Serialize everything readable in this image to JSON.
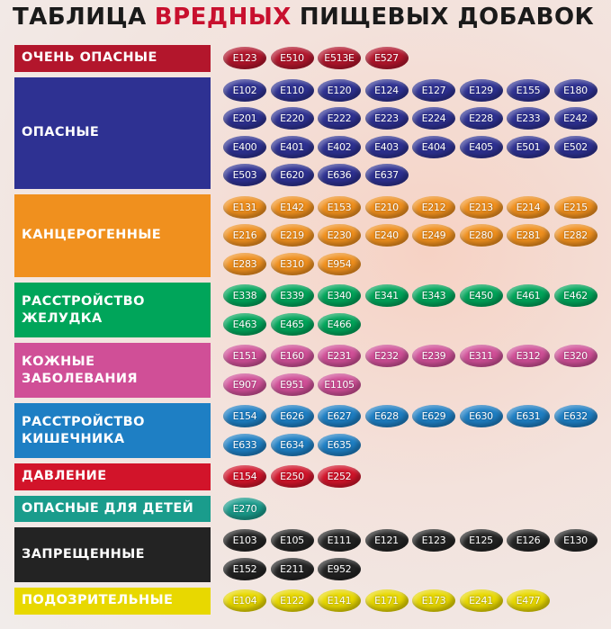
{
  "title": {
    "parts": [
      {
        "text": "ТАБЛИЦА",
        "color": "#1a1a1a"
      },
      {
        "text": "ВРЕДНЫХ",
        "color": "#c8102e"
      },
      {
        "text": "ПИЩЕВЫХ ДОБАВОК",
        "color": "#1a1a1a"
      }
    ]
  },
  "groups": [
    {
      "label": [
        "ОЧЕНЬ ОПАСНЫЕ"
      ],
      "color": "#b3162c",
      "codes": [
        "E123",
        "E510",
        "E513E",
        "E527"
      ]
    },
    {
      "label": [
        "ОПАСНЫЕ"
      ],
      "color": "#2e3192",
      "codes": [
        "E102",
        "E110",
        "E120",
        "E124",
        "E127",
        "E129",
        "E155",
        "E180",
        "E201",
        "E220",
        "E222",
        "E223",
        "E224",
        "E228",
        "E233",
        "E242",
        "E400",
        "E401",
        "E402",
        "E403",
        "E404",
        "E405",
        "E501",
        "E502",
        "E503",
        "E620",
        "E636",
        "E637"
      ]
    },
    {
      "label": [
        "КАНЦЕРОГЕННЫЕ"
      ],
      "color": "#f0901e",
      "codes": [
        "E131",
        "E142",
        "E153",
        "E210",
        "E212",
        "E213",
        "E214",
        "E215",
        "E216",
        "E219",
        "E230",
        "E240",
        "E249",
        "E280",
        "E281",
        "E282",
        "E283",
        "E310",
        "E954"
      ]
    },
    {
      "label": [
        "РАССТРОЙСТВО",
        "ЖЕЛУДКА"
      ],
      "color": "#00a55a",
      "codes": [
        "E338",
        "E339",
        "E340",
        "E341",
        "E343",
        "E450",
        "E461",
        "E462",
        "E463",
        "E465",
        "E466"
      ]
    },
    {
      "label": [
        "КОЖНЫЕ",
        "ЗАБОЛЕВАНИЯ"
      ],
      "color": "#d04f97",
      "codes": [
        "E151",
        "E160",
        "E231",
        "E232",
        "E239",
        "E311",
        "E312",
        "E320",
        "E907",
        "E951",
        "E1105"
      ]
    },
    {
      "label": [
        "РАССТРОЙСТВО",
        "КИШЕЧНИКА"
      ],
      "color": "#1e7fc4",
      "codes": [
        "E154",
        "E626",
        "E627",
        "E628",
        "E629",
        "E630",
        "E631",
        "E632",
        "E633",
        "E634",
        "E635"
      ]
    },
    {
      "label": [
        "ДАВЛЕНИЕ"
      ],
      "color": "#d2142a",
      "codes": [
        "E154",
        "E250",
        "E252"
      ]
    },
    {
      "label": [
        "ОПАСНЫЕ ДЛЯ ДЕТЕЙ"
      ],
      "color": "#1a9c8c",
      "codes": [
        "E270"
      ]
    },
    {
      "label": [
        "ЗАПРЕЩЕННЫЕ"
      ],
      "color": "#232323",
      "codes": [
        "E103",
        "E105",
        "E111",
        "E121",
        "E123",
        "E125",
        "E126",
        "E130",
        "E152",
        "E211",
        "E952"
      ]
    },
    {
      "label": [
        "ПОДОЗРИТЕЛЬНЫЕ"
      ],
      "color": "#e8d800",
      "codes": [
        "E104",
        "E122",
        "E141",
        "E171",
        "E173",
        "E241",
        "E477"
      ]
    }
  ]
}
